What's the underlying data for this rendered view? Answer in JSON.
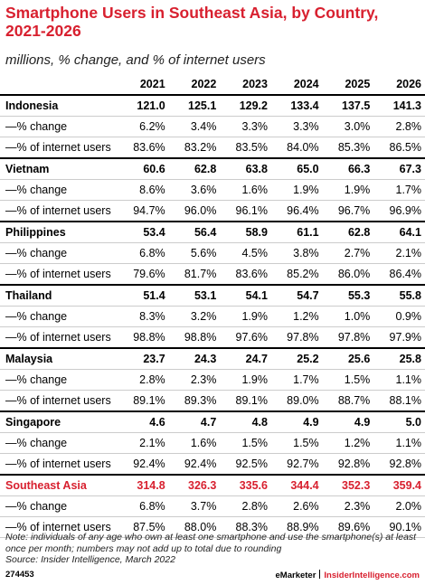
{
  "header": {
    "title": "Smartphone Users in Southeast Asia, by Country, 2021-2026",
    "subtitle": "millions, % change, and % of internet users"
  },
  "table": {
    "columns": [
      "2021",
      "2022",
      "2023",
      "2024",
      "2025",
      "2026"
    ],
    "groups": [
      {
        "name": "Indonesia",
        "values": [
          "121.0",
          "125.1",
          "129.2",
          "133.4",
          "137.5",
          "141.3"
        ],
        "rows": [
          {
            "label": "—% change",
            "values": [
              "6.2%",
              "3.4%",
              "3.3%",
              "3.3%",
              "3.0%",
              "2.8%"
            ]
          },
          {
            "label": "—% of internet users",
            "values": [
              "83.6%",
              "83.2%",
              "83.5%",
              "84.0%",
              "85.3%",
              "86.5%"
            ]
          }
        ]
      },
      {
        "name": "Vietnam",
        "values": [
          "60.6",
          "62.8",
          "63.8",
          "65.0",
          "66.3",
          "67.3"
        ],
        "rows": [
          {
            "label": "—% change",
            "values": [
              "8.6%",
              "3.6%",
              "1.6%",
              "1.9%",
              "1.9%",
              "1.7%"
            ]
          },
          {
            "label": "—% of internet users",
            "values": [
              "94.7%",
              "96.0%",
              "96.1%",
              "96.4%",
              "96.7%",
              "96.9%"
            ]
          }
        ]
      },
      {
        "name": "Philippines",
        "values": [
          "53.4",
          "56.4",
          "58.9",
          "61.1",
          "62.8",
          "64.1"
        ],
        "rows": [
          {
            "label": "—% change",
            "values": [
              "6.8%",
              "5.6%",
              "4.5%",
              "3.8%",
              "2.7%",
              "2.1%"
            ]
          },
          {
            "label": "—% of internet users",
            "values": [
              "79.6%",
              "81.7%",
              "83.6%",
              "85.2%",
              "86.0%",
              "86.4%"
            ]
          }
        ]
      },
      {
        "name": "Thailand",
        "values": [
          "51.4",
          "53.1",
          "54.1",
          "54.7",
          "55.3",
          "55.8"
        ],
        "rows": [
          {
            "label": "—% change",
            "values": [
              "8.3%",
              "3.2%",
              "1.9%",
              "1.2%",
              "1.0%",
              "0.9%"
            ]
          },
          {
            "label": "—% of internet users",
            "values": [
              "98.8%",
              "98.8%",
              "97.6%",
              "97.8%",
              "97.8%",
              "97.9%"
            ]
          }
        ]
      },
      {
        "name": "Malaysia",
        "values": [
          "23.7",
          "24.3",
          "24.7",
          "25.2",
          "25.6",
          "25.8"
        ],
        "rows": [
          {
            "label": "—% change",
            "values": [
              "2.8%",
              "2.3%",
              "1.9%",
              "1.7%",
              "1.5%",
              "1.1%"
            ]
          },
          {
            "label": "—% of internet users",
            "values": [
              "89.1%",
              "89.3%",
              "89.1%",
              "89.0%",
              "88.7%",
              "88.1%"
            ]
          }
        ]
      },
      {
        "name": "Singapore",
        "values": [
          "4.6",
          "4.7",
          "4.8",
          "4.9",
          "4.9",
          "5.0"
        ],
        "rows": [
          {
            "label": "—% change",
            "values": [
              "2.1%",
              "1.6%",
              "1.5%",
              "1.5%",
              "1.2%",
              "1.1%"
            ]
          },
          {
            "label": "—% of internet users",
            "values": [
              "92.4%",
              "92.4%",
              "92.5%",
              "92.7%",
              "92.8%",
              "92.8%"
            ]
          }
        ]
      },
      {
        "name": "Southeast Asia",
        "highlight": true,
        "values": [
          "314.8",
          "326.3",
          "335.6",
          "344.4",
          "352.3",
          "359.4"
        ],
        "rows": [
          {
            "label": "—% change",
            "values": [
              "6.8%",
              "3.7%",
              "2.8%",
              "2.6%",
              "2.3%",
              "2.0%"
            ]
          },
          {
            "label": "—% of internet users",
            "values": [
              "87.5%",
              "88.0%",
              "88.3%",
              "88.9%",
              "89.6%",
              "90.1%"
            ]
          }
        ]
      }
    ]
  },
  "footer": {
    "note": "Note: individuals of any age who own at least one smartphone and use the smartphone(s) at least once per month; numbers may not add up to total due to rounding",
    "source": "Source: Insider Intelligence, March 2022",
    "id": "274453",
    "brand": "eMarketer",
    "site": "InsiderIntelligence.com"
  }
}
